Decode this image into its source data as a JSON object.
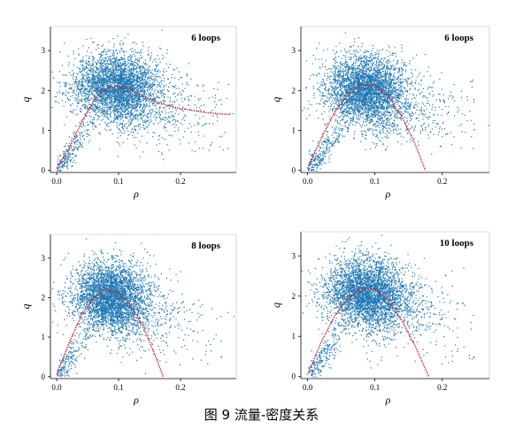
{
  "caption": "图 9 流量-密度关系",
  "colors": {
    "scatter": "#1f77b4",
    "fit": "#e31a1c",
    "axis": "#000000"
  },
  "chart_data": [
    {
      "type": "scatter",
      "annotation": "6 loops",
      "xlabel": "ρ",
      "ylabel": "q",
      "xticks": [
        "0.0",
        "0.1",
        "0.2"
      ],
      "yticks": [
        "0",
        "1",
        "2",
        "3"
      ],
      "xlim": [
        -0.01,
        0.29
      ],
      "ylim": [
        -0.05,
        3.6
      ],
      "cloud": {
        "center": [
          0.095,
          2.1
        ],
        "spread": [
          0.035,
          0.55
        ],
        "density": "very high"
      },
      "series": [
        {
          "type": "line",
          "x": [
            0.0,
            0.02,
            0.04,
            0.06,
            0.08,
            0.1,
            0.12,
            0.14,
            0.16,
            0.18,
            0.2,
            0.22,
            0.24,
            0.26,
            0.28
          ],
          "y": [
            0.05,
            0.55,
            1.2,
            1.75,
            2.05,
            2.1,
            2.0,
            1.85,
            1.72,
            1.62,
            1.55,
            1.5,
            1.45,
            1.42,
            1.4
          ]
        }
      ]
    },
    {
      "type": "scatter",
      "annotation": "6 loops",
      "xlabel": "ρ",
      "ylabel": "q",
      "xticks": [
        "0.0",
        "0.1",
        "0.2"
      ],
      "yticks": [
        "0",
        "1",
        "2",
        "3"
      ],
      "xlim": [
        -0.01,
        0.27
      ],
      "ylim": [
        -0.05,
        3.6
      ],
      "cloud": {
        "center": [
          0.085,
          2.05
        ],
        "spread": [
          0.03,
          0.55
        ],
        "density": "very high"
      },
      "series": [
        {
          "type": "line",
          "x": [
            0.0,
            0.02,
            0.04,
            0.06,
            0.08,
            0.1,
            0.12,
            0.14,
            0.16,
            0.175
          ],
          "y": [
            0.05,
            0.8,
            1.45,
            1.9,
            2.15,
            2.12,
            1.85,
            1.35,
            0.65,
            0.0
          ]
        }
      ]
    },
    {
      "type": "scatter",
      "annotation": "8 loops",
      "xlabel": "ρ",
      "ylabel": "q",
      "xticks": [
        "0.0",
        "0.1",
        "0.2"
      ],
      "yticks": [
        "0",
        "1",
        "2",
        "3"
      ],
      "xlim": [
        -0.01,
        0.29
      ],
      "ylim": [
        -0.05,
        3.6
      ],
      "cloud": {
        "center": [
          0.085,
          2.05
        ],
        "spread": [
          0.03,
          0.55
        ],
        "density": "very high"
      },
      "series": [
        {
          "type": "line",
          "x": [
            0.0,
            0.02,
            0.04,
            0.06,
            0.08,
            0.1,
            0.12,
            0.14,
            0.16,
            0.172
          ],
          "y": [
            0.05,
            0.85,
            1.55,
            2.0,
            2.2,
            2.12,
            1.8,
            1.25,
            0.5,
            0.0
          ]
        }
      ]
    },
    {
      "type": "scatter",
      "annotation": "10 loops",
      "xlabel": "ρ",
      "ylabel": "q",
      "xticks": [
        "0.0",
        "0.1",
        "0.2"
      ],
      "yticks": [
        "0",
        "1",
        "2",
        "3"
      ],
      "xlim": [
        -0.01,
        0.27
      ],
      "ylim": [
        -0.05,
        3.6
      ],
      "cloud": {
        "center": [
          0.085,
          2.1
        ],
        "spread": [
          0.03,
          0.55
        ],
        "density": "very high"
      },
      "series": [
        {
          "type": "line",
          "x": [
            0.0,
            0.02,
            0.04,
            0.06,
            0.08,
            0.1,
            0.12,
            0.14,
            0.16,
            0.18
          ],
          "y": [
            0.05,
            0.85,
            1.5,
            1.95,
            2.2,
            2.18,
            1.9,
            1.4,
            0.75,
            0.0
          ]
        }
      ]
    }
  ]
}
